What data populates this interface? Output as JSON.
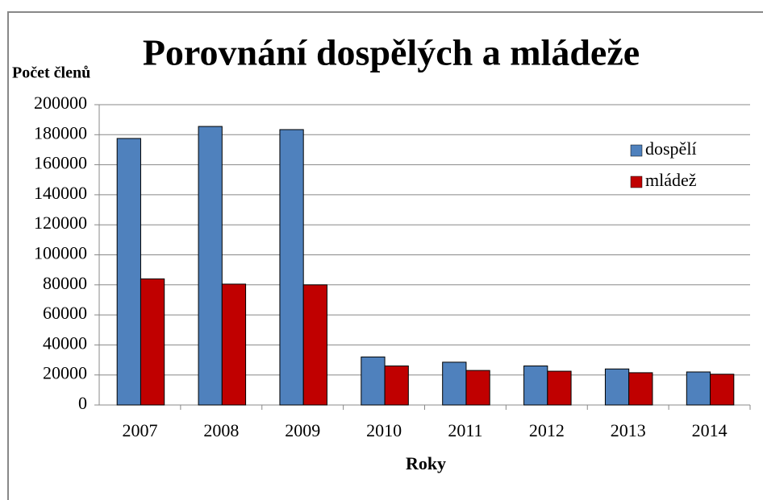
{
  "chart_data": {
    "type": "bar",
    "title": "Porovnání dospělých a mládeže",
    "y_label": "Počet členů",
    "x_label": "Roky",
    "categories": [
      "2007",
      "2008",
      "2009",
      "2010",
      "2011",
      "2012",
      "2013",
      "2014"
    ],
    "series": [
      {
        "name": "dospělí",
        "color": "#4f81bd",
        "values": [
          177500,
          185500,
          183400,
          32000,
          28500,
          26000,
          24000,
          22000
        ]
      },
      {
        "name": "mládež",
        "color": "#c00000",
        "values": [
          84000,
          80500,
          80000,
          26000,
          23000,
          22500,
          21500,
          20500
        ]
      }
    ],
    "ylim": [
      0,
      200000
    ],
    "yticks": [
      0,
      20000,
      40000,
      60000,
      80000,
      100000,
      120000,
      140000,
      160000,
      180000,
      200000
    ],
    "grid": true,
    "legend": "upper right"
  }
}
